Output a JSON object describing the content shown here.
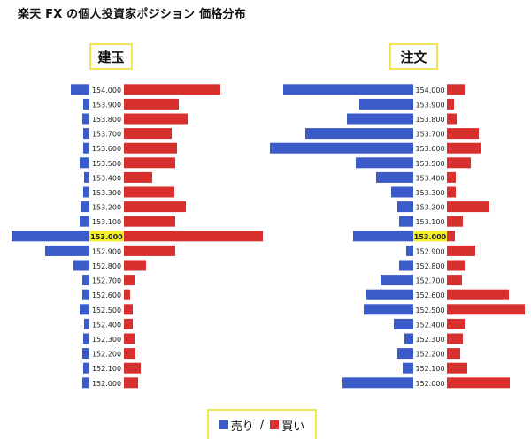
{
  "page_title": "楽天 FX の個人投資家ポジション 価格分布",
  "colors": {
    "sell": "#3b5bc8",
    "buy": "#d8302f",
    "highlight": "#f5ee2a",
    "label_border": "#f2e35a"
  },
  "legend": {
    "sell_label": "売り",
    "separator": "/",
    "buy_label": "買い"
  },
  "chart_data": [
    {
      "type": "bar",
      "title": "建玉",
      "orientation": "horizontal-diverging",
      "categories": [
        "154.000",
        "153.900",
        "153.800",
        "153.700",
        "153.600",
        "153.500",
        "153.400",
        "153.300",
        "153.200",
        "153.100",
        "153.000",
        "152.900",
        "152.800",
        "152.700",
        "152.600",
        "152.500",
        "152.400",
        "152.300",
        "152.200",
        "152.100",
        "152.000"
      ],
      "highlight_category": "153.000",
      "series": [
        {
          "name": "売り",
          "values": [
            21,
            7,
            8,
            7,
            7,
            11,
            6,
            7,
            10,
            11,
            88,
            50,
            18,
            8,
            8,
            11,
            6,
            7,
            8,
            7,
            8
          ]
        },
        {
          "name": "買い",
          "values": [
            109,
            62,
            72,
            54,
            60,
            58,
            32,
            57,
            70,
            58,
            157,
            58,
            25,
            12,
            7,
            10,
            10,
            12,
            13,
            19,
            16
          ]
        }
      ]
    },
    {
      "type": "bar",
      "title": "注文",
      "orientation": "horizontal-diverging",
      "categories": [
        "154.000",
        "153.900",
        "153.800",
        "153.700",
        "153.600",
        "153.500",
        "153.400",
        "153.300",
        "153.200",
        "153.100",
        "153.000",
        "152.900",
        "152.800",
        "152.700",
        "152.600",
        "152.500",
        "152.400",
        "152.300",
        "152.200",
        "152.100",
        "152.000"
      ],
      "highlight_category": "153.000",
      "series": [
        {
          "name": "売り",
          "values": [
            147,
            61,
            75,
            122,
            162,
            65,
            42,
            25,
            18,
            16,
            68,
            8,
            16,
            37,
            54,
            56,
            22,
            10,
            18,
            12,
            80
          ]
        },
        {
          "name": "買い",
          "values": [
            20,
            8,
            11,
            36,
            38,
            27,
            10,
            10,
            48,
            18,
            9,
            32,
            20,
            17,
            70,
            88,
            20,
            18,
            15,
            23,
            71
          ]
        }
      ]
    }
  ]
}
